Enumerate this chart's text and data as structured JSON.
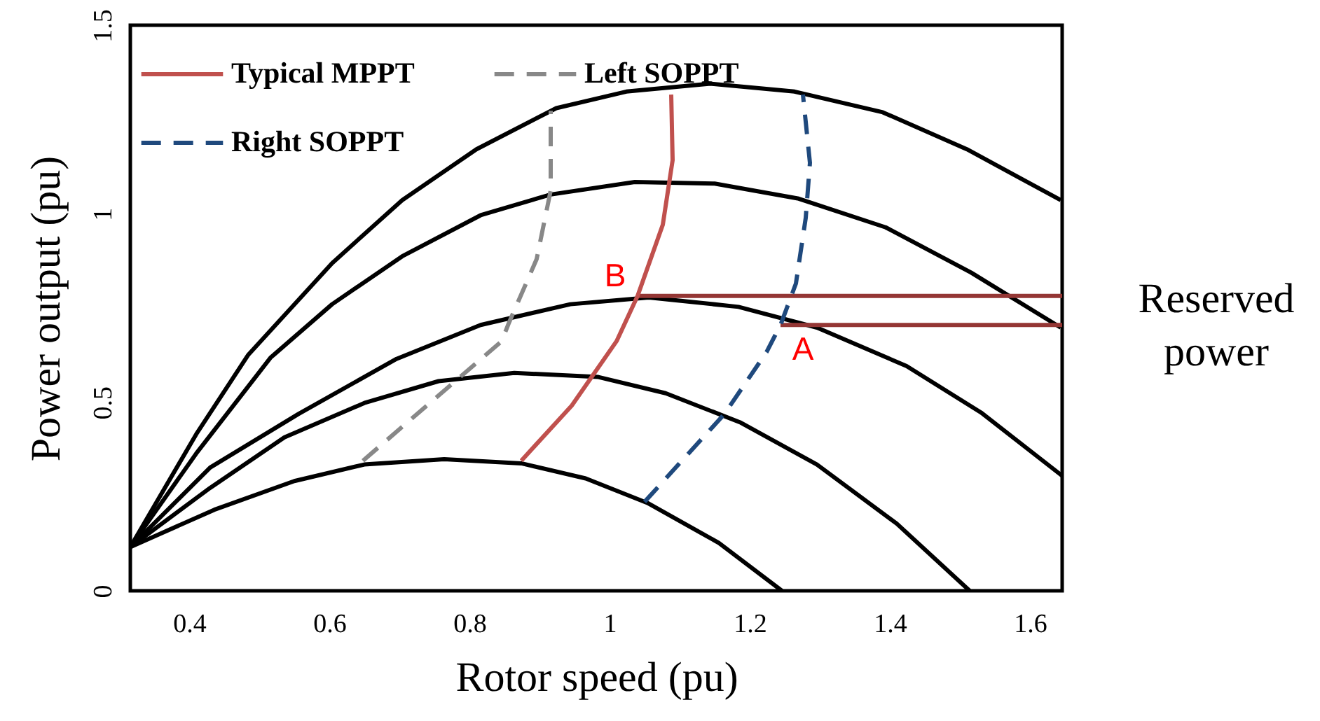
{
  "chart_data": {
    "type": "line",
    "xlabel": "Rotor speed (pu)",
    "ylabel": "Power output (pu)",
    "xlim": [
      0.316,
      1.646
    ],
    "xticks": [
      0.4,
      0.6,
      0.8,
      1,
      1.2,
      1.4,
      1.6
    ],
    "ylim": [
      0,
      1.5
    ],
    "yticks": [
      0,
      0.5,
      1,
      1.5
    ],
    "legend": "top left",
    "marker": "none",
    "annotations": [
      {
        "text": "B",
        "x": 1.04,
        "y": 0.782
      },
      {
        "text": "A",
        "x": 1.244,
        "y": 0.705
      },
      "Reserved power"
    ],
    "series": [
      {
        "color": "#000000",
        "line_style": "solid",
        "x": [
          0.316,
          0.436,
          0.55,
          0.65,
          0.764,
          0.874,
          0.966,
          1.054,
          1.156,
          1.246
        ],
        "values": [
          0.116,
          0.215,
          0.291,
          0.335,
          0.349,
          0.338,
          0.298,
          0.233,
          0.127,
          0
        ]
      },
      {
        "color": "#000000",
        "line_style": "solid",
        "x": [
          0.316,
          0.43,
          0.536,
          0.65,
          0.756,
          0.864,
          0.984,
          1.08,
          1.186,
          1.296,
          1.41,
          1.514
        ],
        "values": [
          0.116,
          0.273,
          0.407,
          0.498,
          0.556,
          0.578,
          0.567,
          0.524,
          0.447,
          0.335,
          0.178,
          0
        ]
      },
      {
        "color": "#000000",
        "line_style": "solid",
        "x": [
          0.316,
          0.43,
          0.556,
          0.696,
          0.816,
          0.944,
          1.056,
          1.184,
          1.296,
          1.424,
          1.53,
          1.646
        ],
        "values": [
          0.116,
          0.327,
          0.469,
          0.615,
          0.705,
          0.76,
          0.778,
          0.753,
          0.698,
          0.596,
          0.473,
          0.305
        ]
      },
      {
        "color": "#000000",
        "line_style": "solid",
        "x": [
          0.316,
          0.41,
          0.516,
          0.604,
          0.704,
          0.816,
          0.916,
          1.036,
          1.15,
          1.27,
          1.394,
          1.516,
          1.644
        ],
        "values": [
          0.116,
          0.364,
          0.618,
          0.76,
          0.887,
          0.996,
          1.051,
          1.084,
          1.08,
          1.04,
          0.964,
          0.844,
          0.698
        ]
      },
      {
        "color": "#000000",
        "line_style": "solid",
        "x": [
          0.316,
          0.41,
          0.484,
          0.604,
          0.704,
          0.81,
          0.924,
          1.024,
          1.144,
          1.264,
          1.39,
          1.51,
          1.644
        ],
        "values": [
          0.116,
          0.415,
          0.625,
          0.869,
          1.036,
          1.171,
          1.28,
          1.324,
          1.345,
          1.324,
          1.269,
          1.171,
          1.036
        ]
      },
      {
        "name": "Typical MPPT",
        "color": "#c0504d",
        "line_style": "solid",
        "x": [
          0.874,
          0.946,
          1.01,
          1.04,
          1.076,
          1.09,
          1.088
        ],
        "values": [
          0.345,
          0.491,
          0.662,
          0.782,
          0.971,
          1.142,
          1.316
        ]
      },
      {
        "name": "Left SOPPT",
        "color": "#888888",
        "line_style": "dashed",
        "x": [
          0.648,
          0.846,
          0.856,
          0.896,
          0.916,
          0.916
        ],
        "values": [
          0.345,
          0.662,
          0.709,
          0.88,
          1.062,
          1.273
        ]
      },
      {
        "name": "Right SOPPT",
        "color": "#1f497d",
        "line_style": "dashed",
        "x": [
          1.05,
          1.164,
          1.224,
          1.244,
          1.266,
          1.28,
          1.286,
          1.276
        ],
        "values": [
          0.236,
          0.469,
          0.633,
          0.705,
          0.815,
          0.989,
          1.135,
          1.316
        ]
      },
      {
        "color": "#943634",
        "line_style": "solid",
        "x": [
          1.04,
          1.646
        ],
        "values": [
          0.782,
          0.782
        ]
      },
      {
        "color": "#943634",
        "line_style": "solid",
        "x": [
          1.244,
          1.646
        ],
        "values": [
          0.705,
          0.705
        ]
      }
    ]
  }
}
